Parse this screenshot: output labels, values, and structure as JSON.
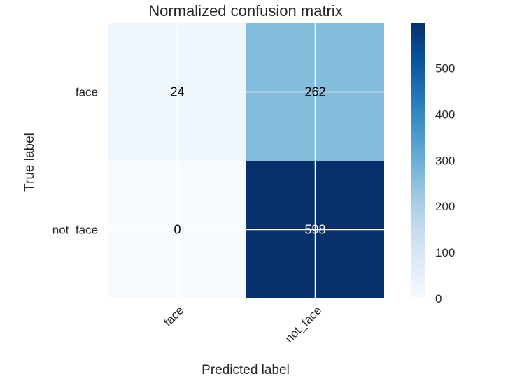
{
  "chart_data": {
    "type": "heatmap",
    "title": "Normalized confusion matrix",
    "xlabel": "Predicted label",
    "ylabel": "True label",
    "x_categories": [
      "face",
      "not_face"
    ],
    "y_categories": [
      "face",
      "not_face"
    ],
    "values": [
      [
        24,
        262
      ],
      [
        0,
        598
      ]
    ],
    "colormap": "Blues",
    "color_min": "#f7fbff",
    "color_max": "#08306b",
    "colorbar": {
      "min": 0,
      "max": 598,
      "ticks": [
        "0",
        "100",
        "200",
        "300",
        "400",
        "500"
      ]
    },
    "grid": true
  }
}
